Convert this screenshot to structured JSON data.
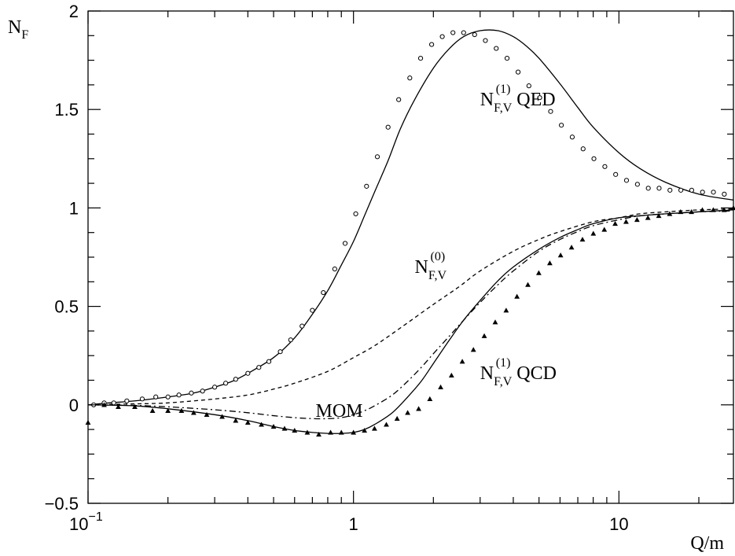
{
  "chart_data": {
    "type": "line",
    "title": "",
    "xlabel": "Q/m",
    "ylabel": {
      "main": "N",
      "sub": "F"
    },
    "x_scale": "log",
    "xlim": [
      0.1,
      27
    ],
    "ylim": [
      -0.5,
      2.0
    ],
    "x_ticks": [
      {
        "value": 0.1,
        "base": "10",
        "exp": "−1"
      },
      {
        "value": 1,
        "base": "1",
        "exp": ""
      },
      {
        "value": 10,
        "base": "10",
        "exp": ""
      }
    ],
    "y_ticks": [
      {
        "value": -0.5,
        "label": "−0.5"
      },
      {
        "value": 0,
        "label": "0"
      },
      {
        "value": 0.5,
        "label": "0.5"
      },
      {
        "value": 1,
        "label": "1"
      },
      {
        "value": 1.5,
        "label": "1.5"
      },
      {
        "value": 2,
        "label": "2"
      }
    ],
    "grid": false,
    "legend": "none",
    "series": [
      {
        "style": "solid",
        "x": [
          0.1,
          0.12,
          0.15,
          0.2,
          0.25,
          0.3,
          0.35,
          0.4,
          0.5,
          0.6,
          0.7,
          0.8,
          0.9,
          1.0,
          1.1,
          1.2,
          1.35,
          1.5,
          1.7,
          2.0,
          2.3,
          2.6,
          3.0,
          3.5,
          4.0,
          4.5,
          5.0,
          6.0,
          7.0,
          8.0,
          10.0,
          12.0,
          15.0,
          20.0,
          27.0
        ],
        "y": [
          0.0,
          0.01,
          0.02,
          0.04,
          0.06,
          0.09,
          0.12,
          0.16,
          0.24,
          0.34,
          0.46,
          0.58,
          0.71,
          0.83,
          0.96,
          1.08,
          1.24,
          1.4,
          1.55,
          1.71,
          1.81,
          1.87,
          1.9,
          1.9,
          1.87,
          1.82,
          1.76,
          1.63,
          1.51,
          1.41,
          1.28,
          1.2,
          1.13,
          1.07,
          1.04
        ]
      },
      {
        "style": "open-circle",
        "x": [
          0.105,
          0.115,
          0.125,
          0.14,
          0.16,
          0.18,
          0.2,
          0.22,
          0.245,
          0.27,
          0.3,
          0.33,
          0.36,
          0.4,
          0.44,
          0.48,
          0.53,
          0.58,
          0.64,
          0.7,
          0.77,
          0.85,
          0.93,
          1.02,
          1.12,
          1.23,
          1.35,
          1.48,
          1.63,
          1.79,
          1.97,
          2.16,
          2.37,
          2.6,
          2.86,
          3.14,
          3.45,
          3.79,
          4.17,
          4.58,
          5.03,
          5.53,
          6.07,
          6.67,
          7.33,
          8.05,
          8.85,
          9.72,
          10.68,
          11.74,
          12.9,
          14.17,
          15.57,
          17.11,
          18.8,
          20.65,
          22.7,
          24.94
        ],
        "y": [
          0.0,
          0.01,
          0.01,
          0.02,
          0.03,
          0.04,
          0.04,
          0.05,
          0.06,
          0.07,
          0.09,
          0.11,
          0.13,
          0.16,
          0.19,
          0.22,
          0.27,
          0.33,
          0.4,
          0.48,
          0.57,
          0.69,
          0.82,
          0.97,
          1.11,
          1.26,
          1.41,
          1.55,
          1.66,
          1.76,
          1.83,
          1.87,
          1.89,
          1.89,
          1.88,
          1.85,
          1.81,
          1.76,
          1.69,
          1.62,
          1.56,
          1.49,
          1.42,
          1.36,
          1.3,
          1.25,
          1.21,
          1.17,
          1.14,
          1.12,
          1.1,
          1.1,
          1.09,
          1.09,
          1.09,
          1.08,
          1.08,
          1.07
        ]
      },
      {
        "style": "dashed",
        "x": [
          0.1,
          0.15,
          0.2,
          0.3,
          0.4,
          0.5,
          0.6,
          0.8,
          1.0,
          1.2,
          1.5,
          2.0,
          2.5,
          3.0,
          4.0,
          5.0,
          6.0,
          8.0,
          10.0,
          12.0,
          15.0,
          20.0,
          27.0
        ],
        "y": [
          0.0,
          0.005,
          0.01,
          0.03,
          0.05,
          0.08,
          0.11,
          0.17,
          0.24,
          0.3,
          0.39,
          0.51,
          0.6,
          0.68,
          0.78,
          0.84,
          0.88,
          0.93,
          0.95,
          0.97,
          0.98,
          0.99,
          0.995
        ]
      },
      {
        "style": "dashdot",
        "x": [
          0.1,
          0.15,
          0.2,
          0.3,
          0.4,
          0.5,
          0.6,
          0.7,
          0.8,
          0.9,
          1.0,
          1.1,
          1.2,
          1.4,
          1.6,
          1.8,
          2.0,
          2.3,
          2.6,
          3.0,
          3.5,
          4.0,
          5.0,
          6.0,
          7.0,
          8.0,
          10.0,
          12.0,
          15.0,
          20.0,
          27.0
        ],
        "y": [
          0.0,
          -0.003,
          -0.01,
          -0.025,
          -0.04,
          -0.055,
          -0.065,
          -0.07,
          -0.07,
          -0.065,
          -0.05,
          -0.03,
          -0.005,
          0.05,
          0.12,
          0.19,
          0.26,
          0.35,
          0.43,
          0.52,
          0.61,
          0.68,
          0.78,
          0.84,
          0.88,
          0.91,
          0.94,
          0.96,
          0.97,
          0.98,
          0.985
        ]
      },
      {
        "style": "solid",
        "x": [
          0.1,
          0.15,
          0.2,
          0.3,
          0.4,
          0.5,
          0.6,
          0.7,
          0.8,
          0.9,
          1.0,
          1.1,
          1.2,
          1.4,
          1.6,
          1.8,
          2.0,
          2.3,
          2.6,
          3.0,
          3.5,
          4.0,
          5.0,
          6.0,
          7.0,
          8.0,
          10.0,
          12.0,
          15.0,
          20.0,
          27.0
        ],
        "y": [
          0.0,
          -0.005,
          -0.02,
          -0.05,
          -0.08,
          -0.11,
          -0.13,
          -0.14,
          -0.145,
          -0.145,
          -0.14,
          -0.125,
          -0.1,
          -0.04,
          0.04,
          0.12,
          0.21,
          0.33,
          0.43,
          0.53,
          0.63,
          0.7,
          0.79,
          0.85,
          0.89,
          0.92,
          0.95,
          0.96,
          0.97,
          0.98,
          0.99
        ]
      },
      {
        "style": "filled-triangle",
        "x": [
          0.1,
          0.115,
          0.13,
          0.15,
          0.175,
          0.2,
          0.225,
          0.25,
          0.28,
          0.32,
          0.36,
          0.4,
          0.45,
          0.5,
          0.55,
          0.6,
          0.67,
          0.74,
          0.82,
          0.9,
          1.0,
          1.1,
          1.2,
          1.33,
          1.46,
          1.6,
          1.76,
          1.94,
          2.13,
          2.34,
          2.57,
          2.83,
          3.11,
          3.42,
          3.76,
          4.13,
          4.54,
          4.99,
          5.49,
          6.03,
          6.63,
          7.29,
          8.01,
          8.81,
          9.68,
          10.64,
          11.7,
          12.86,
          14.13,
          15.53,
          17.07,
          18.76,
          20.62,
          22.67,
          24.91,
          27.0
        ],
        "y": [
          -0.09,
          0.0,
          -0.01,
          -0.01,
          -0.03,
          -0.03,
          -0.03,
          -0.04,
          -0.05,
          -0.06,
          -0.08,
          -0.09,
          -0.1,
          -0.11,
          -0.12,
          -0.13,
          -0.14,
          -0.15,
          -0.14,
          -0.14,
          -0.14,
          -0.13,
          -0.12,
          -0.1,
          -0.07,
          -0.04,
          -0.02,
          0.03,
          0.09,
          0.15,
          0.22,
          0.28,
          0.35,
          0.42,
          0.48,
          0.55,
          0.61,
          0.67,
          0.72,
          0.76,
          0.8,
          0.84,
          0.87,
          0.89,
          0.92,
          0.93,
          0.94,
          0.95,
          0.96,
          0.97,
          0.98,
          0.98,
          0.99,
          0.99,
          0.99,
          1.0
        ]
      }
    ],
    "annotations": [
      {
        "text": "N",
        "sub": "F,V",
        "sup": "(1)",
        "suffix": " QED",
        "x": 3.0,
        "y": 1.52
      },
      {
        "text": "N",
        "sub": "F,V",
        "sup": "(0)",
        "suffix": "",
        "x": 1.7,
        "y": 0.67
      },
      {
        "text": "MOM",
        "sub": "",
        "sup": "",
        "suffix": "",
        "x": 0.72,
        "y": -0.06
      },
      {
        "text": "N",
        "sub": "F,V",
        "sup": "(1)",
        "suffix": " QCD",
        "x": 3.0,
        "y": 0.13
      }
    ]
  }
}
